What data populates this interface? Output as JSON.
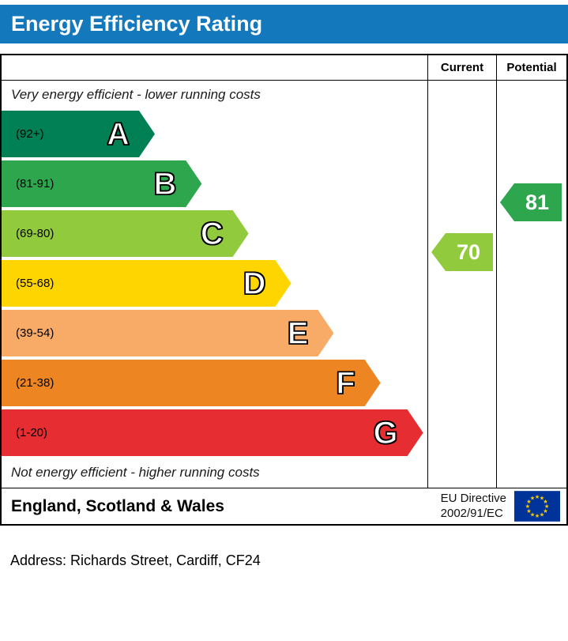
{
  "title": "Energy Efficiency Rating",
  "columns": {
    "current": "Current",
    "potential": "Potential"
  },
  "captions": {
    "top": "Very energy efficient - lower running costs",
    "bottom": "Not energy efficient - higher running costs"
  },
  "chart_data": {
    "type": "bar",
    "title": "Energy Efficiency Rating",
    "bands": [
      {
        "letter": "A",
        "range": "(92+)",
        "color": "#008054",
        "width_pct": 36
      },
      {
        "letter": "B",
        "range": "(81-91)",
        "color": "#2ea64d",
        "width_pct": 47
      },
      {
        "letter": "C",
        "range": "(69-80)",
        "color": "#92ca3e",
        "width_pct": 58
      },
      {
        "letter": "D",
        "range": "(55-68)",
        "color": "#ffd500",
        "width_pct": 68
      },
      {
        "letter": "E",
        "range": "(39-54)",
        "color": "#f8ab67",
        "width_pct": 78
      },
      {
        "letter": "F",
        "range": "(21-38)",
        "color": "#ee8523",
        "width_pct": 89
      },
      {
        "letter": "G",
        "range": "(1-20)",
        "color": "#e62d31",
        "width_pct": 99
      }
    ],
    "current": {
      "value": 70,
      "band": "C",
      "color": "#92ca3e"
    },
    "potential": {
      "value": 81,
      "band": "B",
      "color": "#2ea64d"
    },
    "layout": {
      "bands_order": "best-to-worst top-down",
      "indicator_columns": [
        "Current",
        "Potential"
      ]
    }
  },
  "footer": {
    "region": "England, Scotland & Wales",
    "directive_line1": "EU Directive",
    "directive_line2": "2002/91/EC"
  },
  "address": "Address: Richards Street, Cardiff, CF24",
  "colors": {
    "header_bg": "#1478bd",
    "eu_flag_bg": "#003399",
    "eu_star": "#ffcc00"
  }
}
